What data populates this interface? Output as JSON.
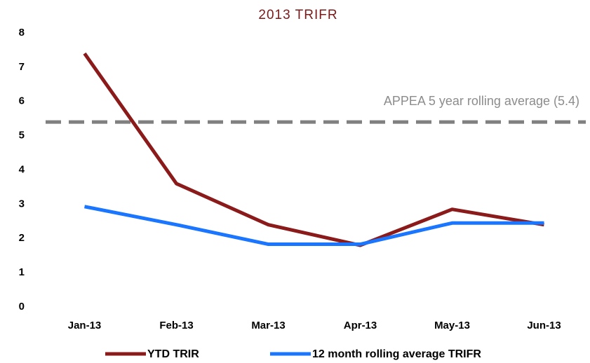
{
  "chart_data": {
    "type": "line",
    "title": "2013  TRIFR",
    "categories": [
      "Jan-13",
      "Feb-13",
      "Mar-13",
      "Apr-13",
      "May-13",
      "Jun-13"
    ],
    "series": [
      {
        "name": "YTD TRIR",
        "color": "#8b1a1a",
        "values": [
          7.4,
          3.6,
          2.4,
          1.8,
          2.85,
          2.4
        ]
      },
      {
        "name": "12 month rolling average TRIFR",
        "color": "#1a75ff",
        "values": [
          2.93,
          2.4,
          1.83,
          1.83,
          2.45,
          2.45
        ]
      }
    ],
    "reference_line": {
      "value": 5.4,
      "label": "APPEA  5 year rolling average (5.4)",
      "color": "#808080"
    },
    "ylim": [
      0,
      8
    ],
    "yticks": [
      0,
      1,
      2,
      3,
      4,
      5,
      6,
      7,
      8
    ],
    "grid": false,
    "legend": "bottom"
  }
}
